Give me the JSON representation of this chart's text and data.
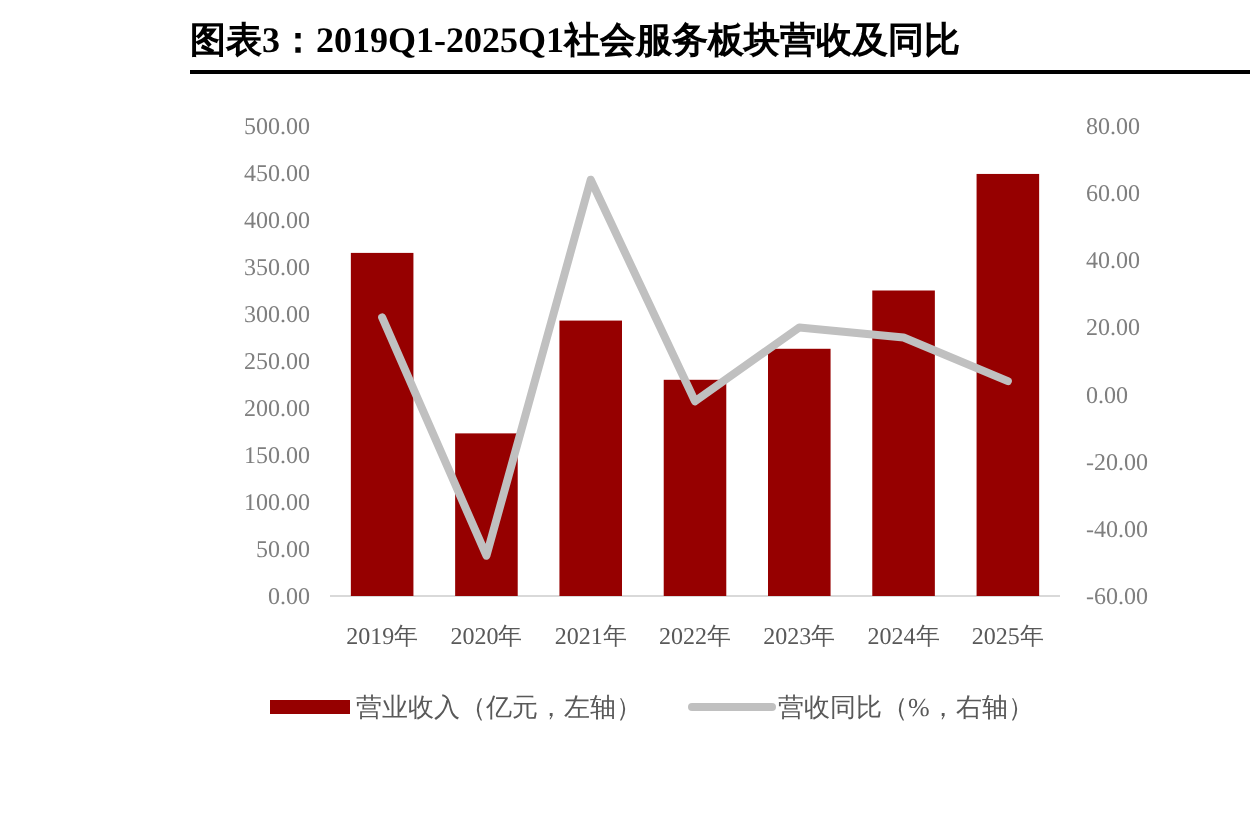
{
  "chart_data": {
    "type": "bar",
    "title": "图表3：2019Q1-2025Q1社会服务板块营收及同比",
    "categories": [
      "2019年",
      "2020年",
      "2021年",
      "2022年",
      "2023年",
      "2024年",
      "2025年"
    ],
    "series": [
      {
        "name": "营业收入（亿元，左轴）",
        "color": "#960000",
        "values": [
          365,
          173,
          293,
          230,
          263,
          325,
          449
        ]
      },
      {
        "name": "营收同比（%，右轴）",
        "type": "line",
        "axis": "y2",
        "color": "#c0c0c0",
        "values": [
          23,
          -48,
          64,
          -2,
          20,
          17,
          4
        ]
      }
    ],
    "ylim": [
      0,
      500
    ],
    "yticks": [
      {
        "value": 0,
        "label": "0.00"
      },
      {
        "value": 50,
        "label": "50.00"
      },
      {
        "value": 100,
        "label": "100.00"
      },
      {
        "value": 150,
        "label": "150.00"
      },
      {
        "value": 200,
        "label": "200.00"
      },
      {
        "value": 250,
        "label": "250.00"
      },
      {
        "value": 300,
        "label": "300.00"
      },
      {
        "value": 350,
        "label": "350.00"
      },
      {
        "value": 400,
        "label": "400.00"
      },
      {
        "value": 450,
        "label": "450.00"
      },
      {
        "value": 500,
        "label": "500.00"
      }
    ],
    "y2lim": [
      -60,
      80
    ],
    "y2ticks": [
      {
        "value": -60,
        "label": "-60.00"
      },
      {
        "value": -40,
        "label": "-40.00"
      },
      {
        "value": -20,
        "label": "-20.00"
      },
      {
        "value": 0,
        "label": "0.00"
      },
      {
        "value": 20,
        "label": "20.00"
      },
      {
        "value": 40,
        "label": "40.00"
      },
      {
        "value": 60,
        "label": "60.00"
      },
      {
        "value": 80,
        "label": "80.00"
      }
    ],
    "legend": "bottom",
    "grid": false
  }
}
